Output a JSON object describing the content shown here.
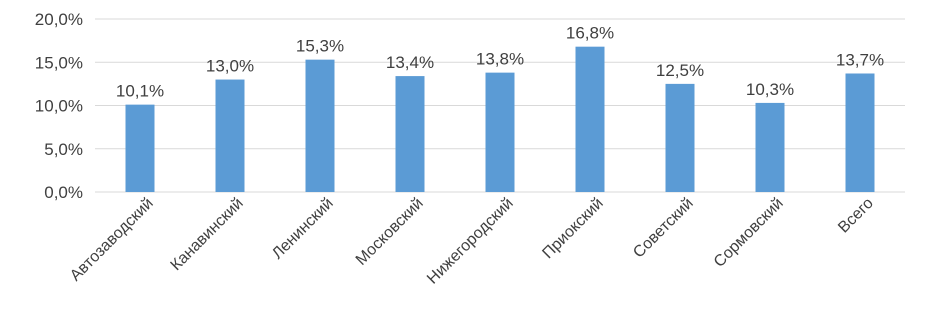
{
  "chart_data": {
    "type": "bar",
    "title": "",
    "xlabel": "",
    "ylabel": "",
    "categories": [
      "Автозаводский",
      "Канавинский",
      "Ленинский",
      "Московский",
      "Нижегородский",
      "Приокский",
      "Советский",
      "Сормовский",
      "Всего"
    ],
    "values": [
      10.1,
      13.0,
      15.3,
      13.4,
      13.8,
      16.8,
      12.5,
      10.3,
      13.7
    ],
    "value_labels": [
      "10,1%",
      "13,0%",
      "15,3%",
      "13,4%",
      "13,8%",
      "16,8%",
      "12,5%",
      "10,3%",
      "13,7%"
    ],
    "ylim": [
      0,
      20
    ],
    "yticks": [
      0,
      5,
      10,
      15,
      20
    ],
    "ytick_labels": [
      "0,0%",
      "5,0%",
      "10,0%",
      "15,0%",
      "20,0%"
    ],
    "grid": "horizontal",
    "legend": "none",
    "colors": {
      "bar": "#5B9BD5",
      "grid": "#D9D9D9",
      "text": "#404040"
    }
  }
}
